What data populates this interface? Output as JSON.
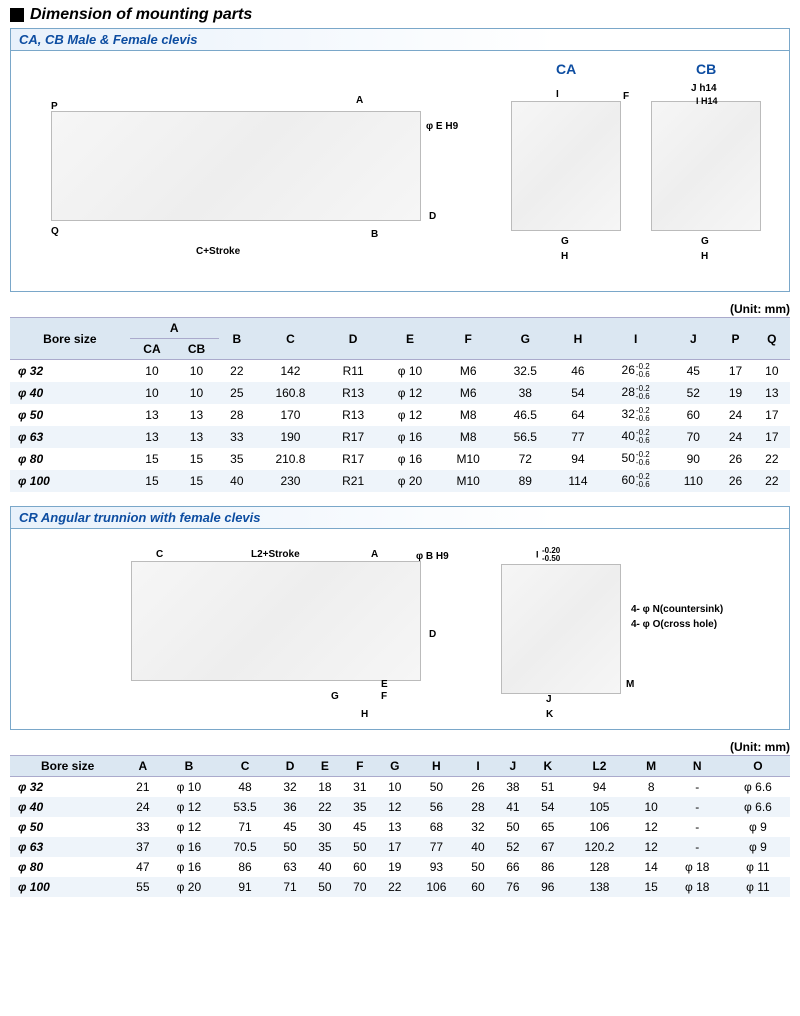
{
  "title": "Dimension of mounting parts",
  "unit_label": "(Unit: mm)",
  "section1": {
    "header": "CA, CB Male & Female clevis",
    "labels": {
      "CA": "CA",
      "CB": "CB",
      "A": "A",
      "B": "B",
      "C_stroke": "C+Stroke",
      "D": "D",
      "E": "φ E H9",
      "F": "F",
      "G": "G",
      "H": "H",
      "I": "I",
      "J": "J h14",
      "I2": "I H14",
      "P": "P",
      "Q": "Q"
    },
    "table": {
      "columns": [
        "Bore size",
        "A_CA",
        "A_CB",
        "B",
        "C",
        "D",
        "E",
        "F",
        "G",
        "H",
        "I",
        "J",
        "P",
        "Q"
      ],
      "header_labels": {
        "bore": "Bore size",
        "A": "A",
        "CA": "CA",
        "CB": "CB",
        "B": "B",
        "C": "C",
        "D": "D",
        "E": "E",
        "F": "F",
        "G": "G",
        "H": "H",
        "I": "I",
        "J": "J",
        "P": "P",
        "Q": "Q"
      },
      "rows": [
        {
          "bore": "φ 32",
          "CA": "10",
          "CB": "10",
          "B": "22",
          "C": "142",
          "D": "R11",
          "E": "φ 10",
          "F": "M6",
          "G": "32.5",
          "H": "46",
          "I": "26",
          "Itol": [
            "-0.2",
            "-0.6"
          ],
          "J": "45",
          "P": "17",
          "Q": "10"
        },
        {
          "bore": "φ 40",
          "CA": "10",
          "CB": "10",
          "B": "25",
          "C": "160.8",
          "D": "R13",
          "E": "φ 12",
          "F": "M6",
          "G": "38",
          "H": "54",
          "I": "28",
          "Itol": [
            "-0.2",
            "-0.6"
          ],
          "J": "52",
          "P": "19",
          "Q": "13"
        },
        {
          "bore": "φ 50",
          "CA": "13",
          "CB": "13",
          "B": "28",
          "C": "170",
          "D": "R13",
          "E": "φ 12",
          "F": "M8",
          "G": "46.5",
          "H": "64",
          "I": "32",
          "Itol": [
            "-0.2",
            "-0.6"
          ],
          "J": "60",
          "P": "24",
          "Q": "17"
        },
        {
          "bore": "φ 63",
          "CA": "13",
          "CB": "13",
          "B": "33",
          "C": "190",
          "D": "R17",
          "E": "φ 16",
          "F": "M8",
          "G": "56.5",
          "H": "77",
          "I": "40",
          "Itol": [
            "-0.2",
            "-0.6"
          ],
          "J": "70",
          "P": "24",
          "Q": "17"
        },
        {
          "bore": "φ 80",
          "CA": "15",
          "CB": "15",
          "B": "35",
          "C": "210.8",
          "D": "R17",
          "E": "φ 16",
          "F": "M10",
          "G": "72",
          "H": "94",
          "I": "50",
          "Itol": [
            "-0.2",
            "-0.6"
          ],
          "J": "90",
          "P": "26",
          "Q": "22"
        },
        {
          "bore": "φ 100",
          "CA": "15",
          "CB": "15",
          "B": "40",
          "C": "230",
          "D": "R21",
          "E": "φ 20",
          "F": "M10",
          "G": "89",
          "H": "114",
          "I": "60",
          "Itol": [
            "-0.2",
            "-0.6"
          ],
          "J": "110",
          "P": "26",
          "Q": "22"
        }
      ]
    }
  },
  "section2": {
    "header": "CR Angular trunnion with female clevis",
    "labels": {
      "A": "A",
      "B": "φ B H9",
      "C": "C",
      "D": "D",
      "E": "E",
      "F": "F",
      "G": "G",
      "H": "H",
      "I": "I -0.20/-0.50",
      "J": "J",
      "K": "K",
      "L2": "L2+Stroke",
      "M": "M",
      "N": "4- φ N(countersink)",
      "O": "4- φ O(cross hole)"
    },
    "table": {
      "header_labels": {
        "bore": "Bore size",
        "A": "A",
        "B": "B",
        "C": "C",
        "D": "D",
        "E": "E",
        "F": "F",
        "G": "G",
        "H": "H",
        "I": "I",
        "J": "J",
        "K": "K",
        "L2": "L2",
        "M": "M",
        "N": "N",
        "O": "O"
      },
      "rows": [
        {
          "bore": "φ 32",
          "A": "21",
          "B": "φ 10",
          "C": "48",
          "D": "32",
          "E": "18",
          "F": "31",
          "G": "10",
          "H": "50",
          "I": "26",
          "J": "38",
          "K": "51",
          "L2": "94",
          "M": "8",
          "N": "-",
          "O": "φ 6.6"
        },
        {
          "bore": "φ 40",
          "A": "24",
          "B": "φ 12",
          "C": "53.5",
          "D": "36",
          "E": "22",
          "F": "35",
          "G": "12",
          "H": "56",
          "I": "28",
          "J": "41",
          "K": "54",
          "L2": "105",
          "M": "10",
          "N": "-",
          "O": "φ 6.6"
        },
        {
          "bore": "φ 50",
          "A": "33",
          "B": "φ 12",
          "C": "71",
          "D": "45",
          "E": "30",
          "F": "45",
          "G": "13",
          "H": "68",
          "I": "32",
          "J": "50",
          "K": "65",
          "L2": "106",
          "M": "12",
          "N": "-",
          "O": "φ 9"
        },
        {
          "bore": "φ 63",
          "A": "37",
          "B": "φ 16",
          "C": "70.5",
          "D": "50",
          "E": "35",
          "F": "50",
          "G": "17",
          "H": "77",
          "I": "40",
          "J": "52",
          "K": "67",
          "L2": "120.2",
          "M": "12",
          "N": "-",
          "O": "φ 9"
        },
        {
          "bore": "φ 80",
          "A": "47",
          "B": "φ 16",
          "C": "86",
          "D": "63",
          "E": "40",
          "F": "60",
          "G": "19",
          "H": "93",
          "I": "50",
          "J": "66",
          "K": "86",
          "L2": "128",
          "M": "14",
          "N": "φ 18",
          "O": "φ 11"
        },
        {
          "bore": "φ 100",
          "A": "55",
          "B": "φ 20",
          "C": "91",
          "D": "71",
          "E": "50",
          "F": "70",
          "G": "22",
          "H": "106",
          "I": "60",
          "J": "76",
          "K": "96",
          "L2": "138",
          "M": "15",
          "N": "φ 18",
          "O": "φ 11"
        }
      ]
    }
  },
  "colors": {
    "panel_border": "#7aa7c9",
    "header_text": "#0d4da1",
    "thead_bg": "#dbe7f2",
    "row_alt": "#eef4fa"
  }
}
